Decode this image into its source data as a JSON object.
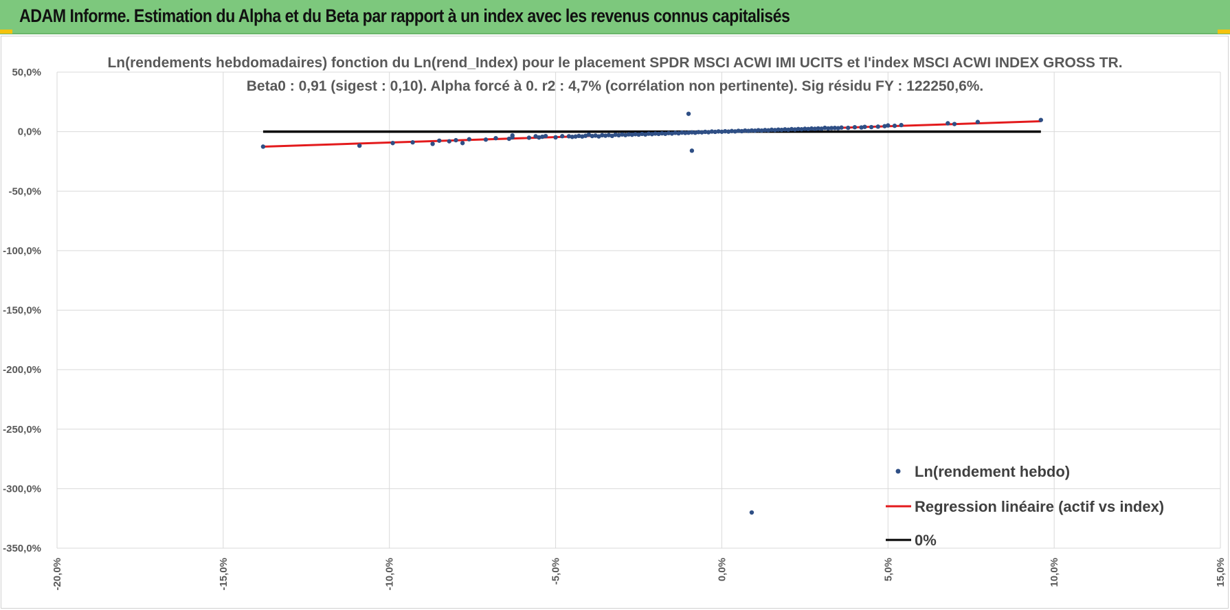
{
  "banner": {
    "title": "ADAM Informe. Estimation du Alpha et du Beta par rapport à un index avec les revenus connus capitalisés"
  },
  "colors": {
    "banner": "#7dc87d",
    "points": "#2f4f85",
    "regression": "#e31a1c",
    "zero_line": "#000000",
    "grid": "#d9d9d9",
    "text": "#595959"
  },
  "chart_data": {
    "type": "scatter",
    "title_line1": "Ln(rendements hebdomadaires) fonction du Ln(rend_Index) pour le placement SPDR MSCI ACWI IMI UCITS  et l'index MSCI ACWI INDEX GROSS TR.",
    "title_line2": "Beta0 : 0,91  (sigest : 0,10).  Alpha forcé à 0. r2 : 4,7% (corrélation non pertinente). Sig résidu FY : 122250,6%.",
    "xlabel": "",
    "ylabel": "",
    "xlim": [
      -20,
      15
    ],
    "ylim": [
      -350,
      50
    ],
    "x_ticks": [
      -20,
      -15,
      -10,
      -5,
      0,
      5,
      10,
      15
    ],
    "x_tick_labels": [
      "-20,0%",
      "-15,0%",
      "-10,0%",
      "-5,0%",
      "0,0%",
      "5,0%",
      "10,0%",
      "15,0%"
    ],
    "y_ticks": [
      50,
      0,
      -50,
      -100,
      -150,
      -200,
      -250,
      -300,
      -350
    ],
    "y_tick_labels": [
      "50,0%",
      "0,0%",
      "-50,0%",
      "-100,0%",
      "-150,0%",
      "-200,0%",
      "-250,0%",
      "-300,0%",
      "-350,0%"
    ],
    "grid": true,
    "legend_position": "bottom-right",
    "legend": [
      "Ln(rendement hebdo)",
      "Regression linéaire (actif vs index)",
      "0%"
    ],
    "series": [
      {
        "name": "Ln(rendement hebdo)",
        "kind": "scatter",
        "points": [
          [
            -13.8,
            -12.6
          ],
          [
            -10.9,
            -11.8
          ],
          [
            -9.9,
            -9.6
          ],
          [
            -9.3,
            -9.0
          ],
          [
            -8.7,
            -10.3
          ],
          [
            -8.5,
            -7.6
          ],
          [
            -8.2,
            -8.1
          ],
          [
            -8.0,
            -7.2
          ],
          [
            -7.8,
            -9.6
          ],
          [
            -7.6,
            -6.4
          ],
          [
            -7.1,
            -6.7
          ],
          [
            -6.8,
            -5.5
          ],
          [
            -6.4,
            -6.0
          ],
          [
            -6.3,
            -3.2
          ],
          [
            -6.3,
            -4.8
          ],
          [
            -5.8,
            -5.1
          ],
          [
            -5.6,
            -3.9
          ],
          [
            -5.5,
            -4.9
          ],
          [
            -5.4,
            -4.3
          ],
          [
            -5.3,
            -3.7
          ],
          [
            -5.0,
            -4.8
          ],
          [
            -4.8,
            -3.8
          ],
          [
            -4.6,
            -3.9
          ],
          [
            -4.5,
            -4.4
          ],
          [
            -4.4,
            -4.1
          ],
          [
            -4.3,
            -3.6
          ],
          [
            -4.2,
            -4.1
          ],
          [
            -4.1,
            -3.5
          ],
          [
            -4.0,
            -2.6
          ],
          [
            -3.9,
            -3.7
          ],
          [
            -3.8,
            -3.3
          ],
          [
            -3.7,
            -4.0
          ],
          [
            -3.6,
            -3.0
          ],
          [
            -3.5,
            -3.4
          ],
          [
            -3.4,
            -2.9
          ],
          [
            -3.3,
            -3.6
          ],
          [
            -3.2,
            -2.6
          ],
          [
            -3.1,
            -3.0
          ],
          [
            -3.0,
            -2.4
          ],
          [
            -2.9,
            -2.9
          ],
          [
            -2.8,
            -2.3
          ],
          [
            -2.7,
            -2.6
          ],
          [
            -2.6,
            -2.1
          ],
          [
            -2.5,
            -2.5
          ],
          [
            -2.4,
            -1.9
          ],
          [
            -2.3,
            -2.4
          ],
          [
            -2.2,
            -1.7
          ],
          [
            -2.1,
            -2.1
          ],
          [
            -2.0,
            -1.6
          ],
          [
            -1.9,
            -1.9
          ],
          [
            -1.8,
            -1.4
          ],
          [
            -1.7,
            -1.8
          ],
          [
            -1.6,
            -1.2
          ],
          [
            -1.5,
            -1.6
          ],
          [
            -1.4,
            -1.0
          ],
          [
            -1.3,
            -1.4
          ],
          [
            -1.2,
            -0.8
          ],
          [
            -1.1,
            -1.1
          ],
          [
            -1.0,
            15.0
          ],
          [
            -0.9,
            -16.0
          ],
          [
            -1.0,
            -0.9
          ],
          [
            -0.9,
            -0.6
          ],
          [
            -0.8,
            -0.9
          ],
          [
            -0.7,
            -0.4
          ],
          [
            -0.6,
            -0.6
          ],
          [
            -0.5,
            -0.2
          ],
          [
            -0.4,
            -0.5
          ],
          [
            -0.3,
            0.1
          ],
          [
            -0.2,
            -0.2
          ],
          [
            -0.1,
            0.2
          ],
          [
            0.0,
            -0.1
          ],
          [
            0.1,
            0.3
          ],
          [
            0.2,
            0.0
          ],
          [
            0.3,
            0.5
          ],
          [
            0.4,
            0.2
          ],
          [
            0.5,
            0.7
          ],
          [
            0.6,
            0.4
          ],
          [
            0.7,
            0.9
          ],
          [
            0.8,
            0.6
          ],
          [
            0.9,
            1.0
          ],
          [
            1.0,
            0.8
          ],
          [
            1.1,
            1.2
          ],
          [
            1.2,
            0.9
          ],
          [
            1.3,
            1.3
          ],
          [
            1.4,
            1.1
          ],
          [
            1.5,
            1.6
          ],
          [
            1.6,
            1.3
          ],
          [
            1.7,
            1.7
          ],
          [
            1.8,
            1.5
          ],
          [
            1.9,
            1.9
          ],
          [
            2.0,
            1.6
          ],
          [
            2.1,
            2.1
          ],
          [
            2.2,
            1.8
          ],
          [
            2.3,
            2.2
          ],
          [
            2.4,
            2.0
          ],
          [
            2.5,
            2.4
          ],
          [
            2.6,
            2.2
          ],
          [
            2.7,
            2.6
          ],
          [
            2.8,
            2.4
          ],
          [
            2.9,
            2.7
          ],
          [
            3.0,
            2.5
          ],
          [
            3.1,
            3.2
          ],
          [
            3.2,
            2.7
          ],
          [
            3.3,
            3.0
          ],
          [
            3.4,
            3.1
          ],
          [
            3.5,
            2.9
          ],
          [
            3.6,
            3.4
          ],
          [
            3.8,
            3.2
          ],
          [
            4.0,
            3.7
          ],
          [
            4.2,
            3.5
          ],
          [
            4.3,
            4.0
          ],
          [
            4.5,
            3.8
          ],
          [
            4.7,
            4.2
          ],
          [
            4.9,
            4.6
          ],
          [
            5.0,
            5.2
          ],
          [
            5.2,
            4.9
          ],
          [
            5.4,
            5.5
          ],
          [
            6.8,
            7.0
          ],
          [
            7.0,
            6.4
          ],
          [
            7.7,
            8.1
          ],
          [
            9.6,
            9.8
          ],
          [
            0.9,
            -320.0
          ]
        ]
      },
      {
        "name": "Regression linéaire (actif vs index)",
        "kind": "line",
        "x": [
          -13.8,
          9.6
        ],
        "y": [
          -12.6,
          8.7
        ]
      },
      {
        "name": "0%",
        "kind": "line",
        "x": [
          -13.8,
          9.6
        ],
        "y": [
          0,
          0
        ]
      }
    ]
  }
}
